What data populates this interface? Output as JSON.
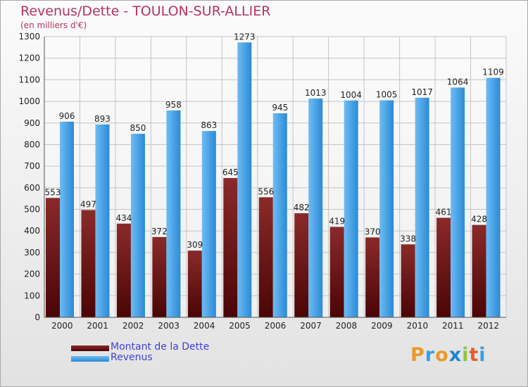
{
  "chart_data": {
    "type": "bar",
    "title": "Revenus/Dette - TOULON-SUR-ALLIER",
    "subtitle": "(en milliers d'€)",
    "categories": [
      "2000",
      "2001",
      "2002",
      "2003",
      "2004",
      "2005",
      "2006",
      "2007",
      "2008",
      "2009",
      "2010",
      "2011",
      "2012"
    ],
    "series": [
      {
        "name": "Montant de la Dette",
        "color": "#7a1c1c",
        "values": [
          553,
          497,
          434,
          372,
          309,
          645,
          556,
          482,
          419,
          370,
          338,
          461,
          428
        ]
      },
      {
        "name": "Revenus",
        "color": "#3f9fe3",
        "values": [
          906,
          893,
          850,
          958,
          863,
          1273,
          945,
          1013,
          1004,
          1005,
          1017,
          1064,
          1109
        ]
      }
    ],
    "ylim": [
      0,
      1300
    ],
    "yticks": [
      0,
      100,
      200,
      300,
      400,
      500,
      600,
      700,
      800,
      900,
      1000,
      1100,
      1200,
      1300
    ],
    "xlabel": "",
    "ylabel": "",
    "grid": true,
    "legend_position": "bottom-left"
  },
  "brand": "Proxiti",
  "brand_colors": [
    "#e89a28",
    "#3a9ee0",
    "#e89a28",
    "#1a86d4",
    "#8cc63f",
    "#e85a2a",
    "#3a9ee0"
  ]
}
